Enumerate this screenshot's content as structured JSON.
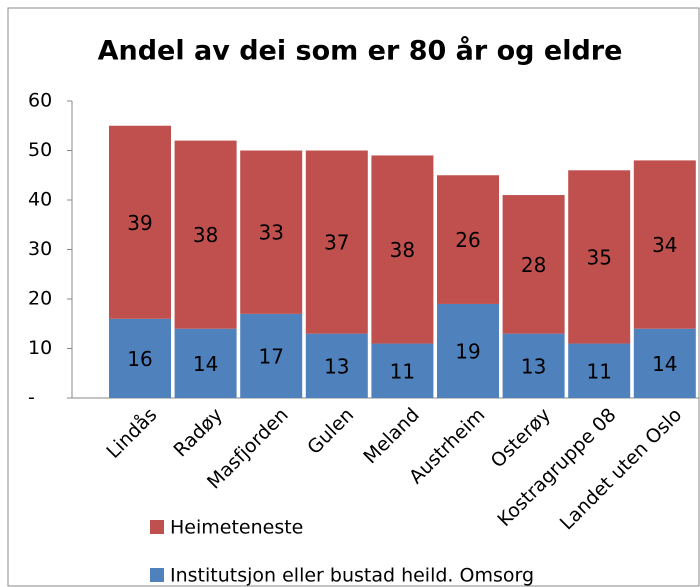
{
  "chart_data": {
    "type": "stacked-bar",
    "title": "Andel av dei som er 80 år og eldre",
    "categories": [
      "Lindås",
      "Radøy",
      "Masfjorden",
      "Gulen",
      "Meland",
      "Austrheim",
      "Osterøy",
      "Kostragruppe 08",
      "Landet uten Oslo"
    ],
    "series": [
      {
        "name": "Institutsjon eller bustad heild. Omsorg",
        "color": "#4f81bd",
        "values": [
          16,
          14,
          17,
          13,
          11,
          19,
          13,
          11,
          14
        ]
      },
      {
        "name": "Heimeteneste",
        "color": "#c0504d",
        "values": [
          39,
          38,
          33,
          37,
          38,
          26,
          28,
          35,
          34
        ]
      }
    ],
    "ylim": [
      0,
      60
    ],
    "yticks": [
      {
        "value": 0,
        "label": "-"
      },
      10,
      20,
      30,
      40,
      50,
      60
    ]
  }
}
